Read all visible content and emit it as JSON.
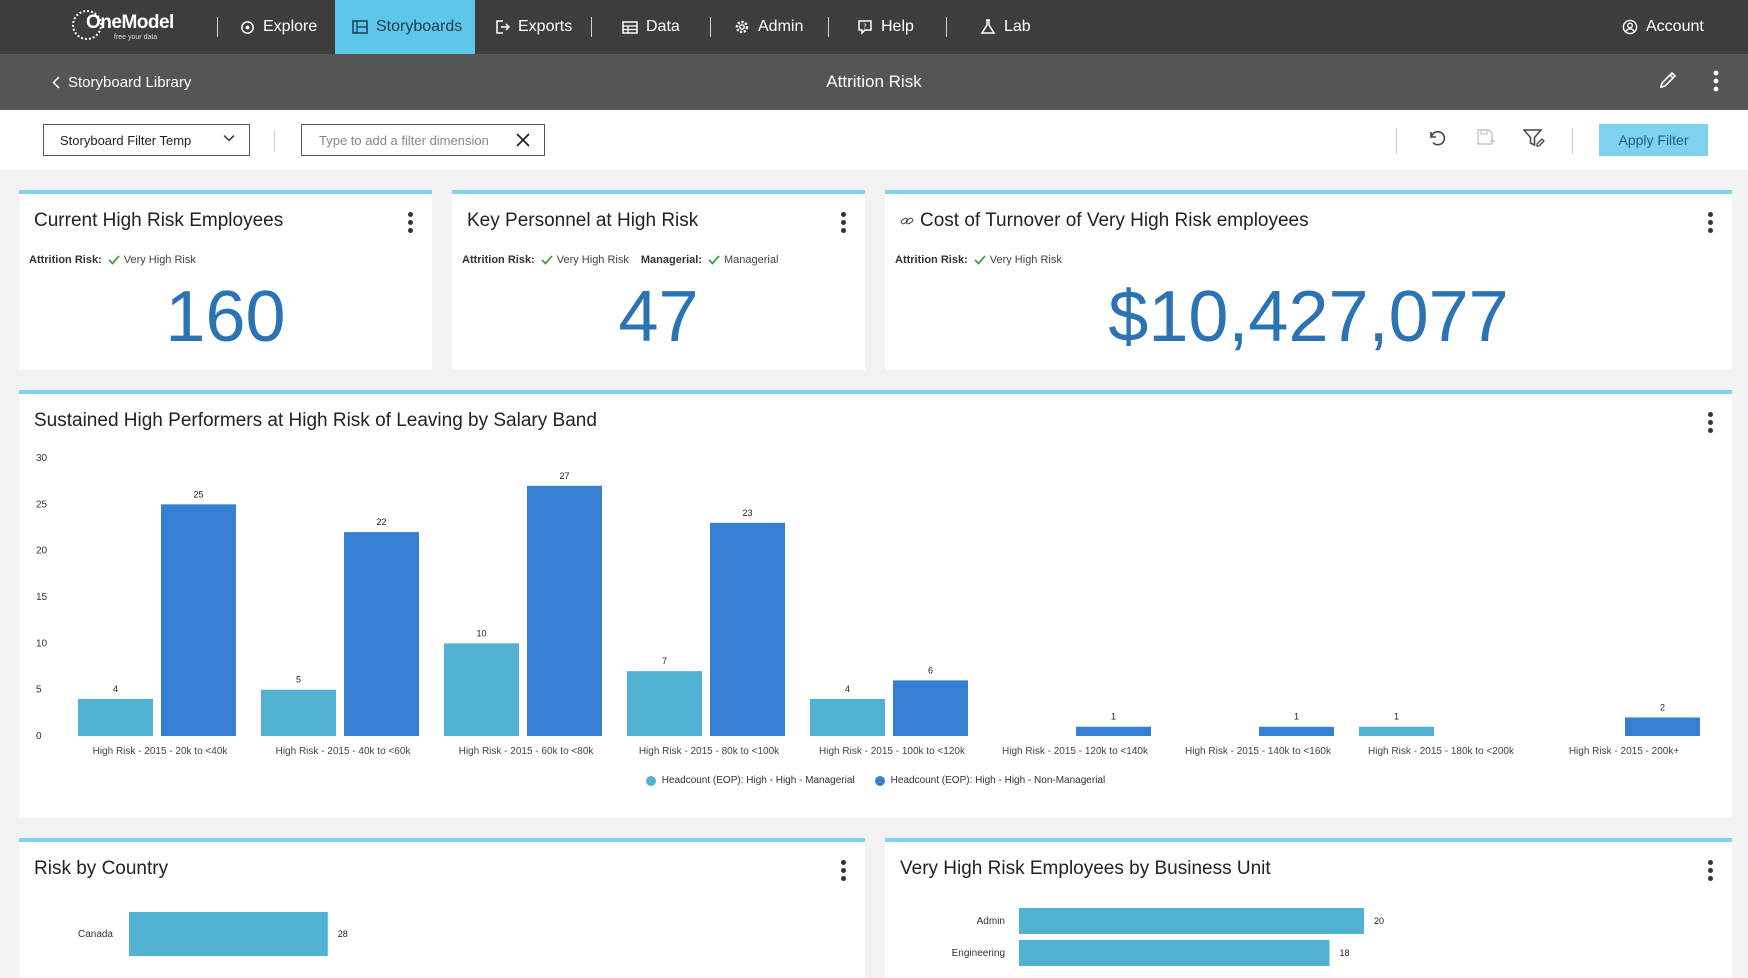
{
  "nav": {
    "logo_word": "OneModel",
    "logo_tagline": "free your data",
    "items": [
      {
        "label": "Explore",
        "icon": "explore-icon"
      },
      {
        "label": "Storyboards",
        "icon": "storyboards-icon"
      },
      {
        "label": "Exports",
        "icon": "exports-icon"
      },
      {
        "label": "Data",
        "icon": "data-icon"
      },
      {
        "label": "Admin",
        "icon": "gear-icon"
      },
      {
        "label": "Help",
        "icon": "help-icon"
      },
      {
        "label": "Lab",
        "icon": "lab-icon"
      }
    ],
    "active": "Storyboards",
    "account_label": "Account"
  },
  "subheader": {
    "back_label": "Storyboard Library",
    "title": "Attrition Risk"
  },
  "filterbar": {
    "template_value": "Storyboard Filter Temp",
    "filter_placeholder": "Type to add a filter dimension",
    "apply_label": "Apply Filter"
  },
  "cards": {
    "high_risk": {
      "title": "Current High Risk Employees",
      "filter_label": "Attrition Risk:",
      "filter_value": "Very High Risk",
      "value": "160"
    },
    "key_personnel": {
      "title": "Key Personnel at High Risk",
      "filter1_label": "Attrition Risk:",
      "filter1_value": "Very High Risk",
      "filter2_label": "Managerial:",
      "filter2_value": "Managerial",
      "value": "47"
    },
    "cost": {
      "title": "Cost of Turnover of Very High Risk employees",
      "filter_label": "Attrition Risk:",
      "filter_value": "Very High Risk",
      "value": "$10,427,077"
    },
    "country": {
      "title": "Risk by Country"
    },
    "business_unit": {
      "title": "Very High Risk Employees by Business Unit"
    }
  },
  "chart_data": [
    {
      "type": "bar",
      "title": "Sustained High Performers at High Risk of Leaving by Salary Band",
      "categories": [
        "High Risk - 2015 - 20k to <40k",
        "High Risk - 2015 - 40k to <60k",
        "High Risk - 2015 - 60k to <80k",
        "High Risk - 2015 - 80k to <100k",
        "High Risk - 2015 - 100k to <120k",
        "High Risk - 2015 - 120k to <140k",
        "High Risk - 2015 - 140k to <160k",
        "High Risk - 2015 - 180k to <200k",
        "High Risk - 2015 - 200k+"
      ],
      "series": [
        {
          "name": "Headcount (EOP): High - High - Managerial",
          "color": "#52b2d3",
          "values": [
            4,
            5,
            10,
            7,
            4,
            null,
            null,
            1,
            null
          ]
        },
        {
          "name": "Headcount (EOP): High - High - Non-Managerial",
          "color": "#367fd2",
          "values": [
            25,
            22,
            27,
            23,
            6,
            1,
            1,
            null,
            2
          ]
        }
      ],
      "yticks": [
        0,
        5,
        10,
        15,
        20,
        25,
        30
      ],
      "ylim": [
        0,
        30
      ],
      "legend": "bottom"
    },
    {
      "type": "bar",
      "orientation": "horizontal",
      "title": "Risk by Country",
      "categories": [
        "Canada"
      ],
      "values": [
        28
      ],
      "color": "#52b2d3"
    },
    {
      "type": "bar",
      "orientation": "horizontal",
      "title": "Very High Risk Employees by Business Unit",
      "categories": [
        "Admin",
        "Engineering"
      ],
      "values": [
        20,
        18
      ],
      "color": "#52b2d3"
    }
  ]
}
